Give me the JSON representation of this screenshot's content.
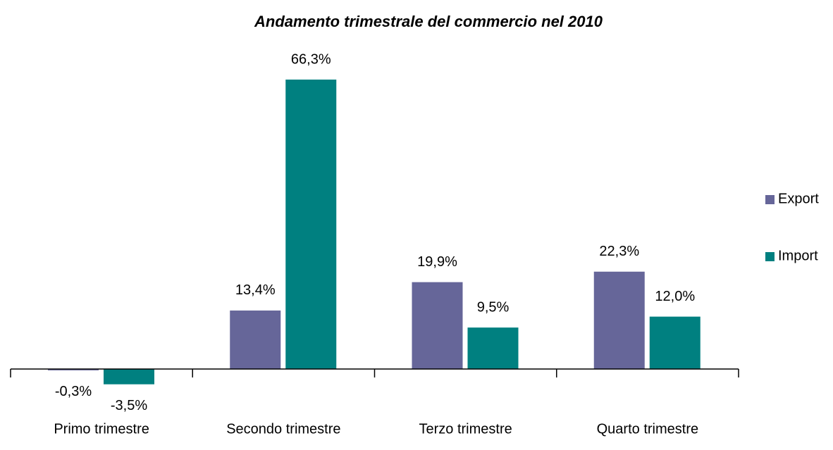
{
  "chart_data": {
    "type": "bar",
    "title": "Andamento trimestrale del commercio nel 2010",
    "categories": [
      "Primo trimestre",
      "Secondo trimestre",
      "Terzo trimestre",
      "Quarto trimestre"
    ],
    "series": [
      {
        "name": "Export",
        "color": "#666699",
        "values": [
          -0.3,
          13.4,
          19.9,
          22.3
        ],
        "value_labels": [
          "-0,3%",
          "13,4%",
          "19,9%",
          "22,3%"
        ]
      },
      {
        "name": "Import",
        "color": "#008080",
        "values": [
          -3.5,
          66.3,
          9.5,
          12.0
        ],
        "value_labels": [
          "-3,5%",
          "66,3%",
          "9,5%",
          "12,0%"
        ]
      }
    ],
    "legend": "right"
  }
}
